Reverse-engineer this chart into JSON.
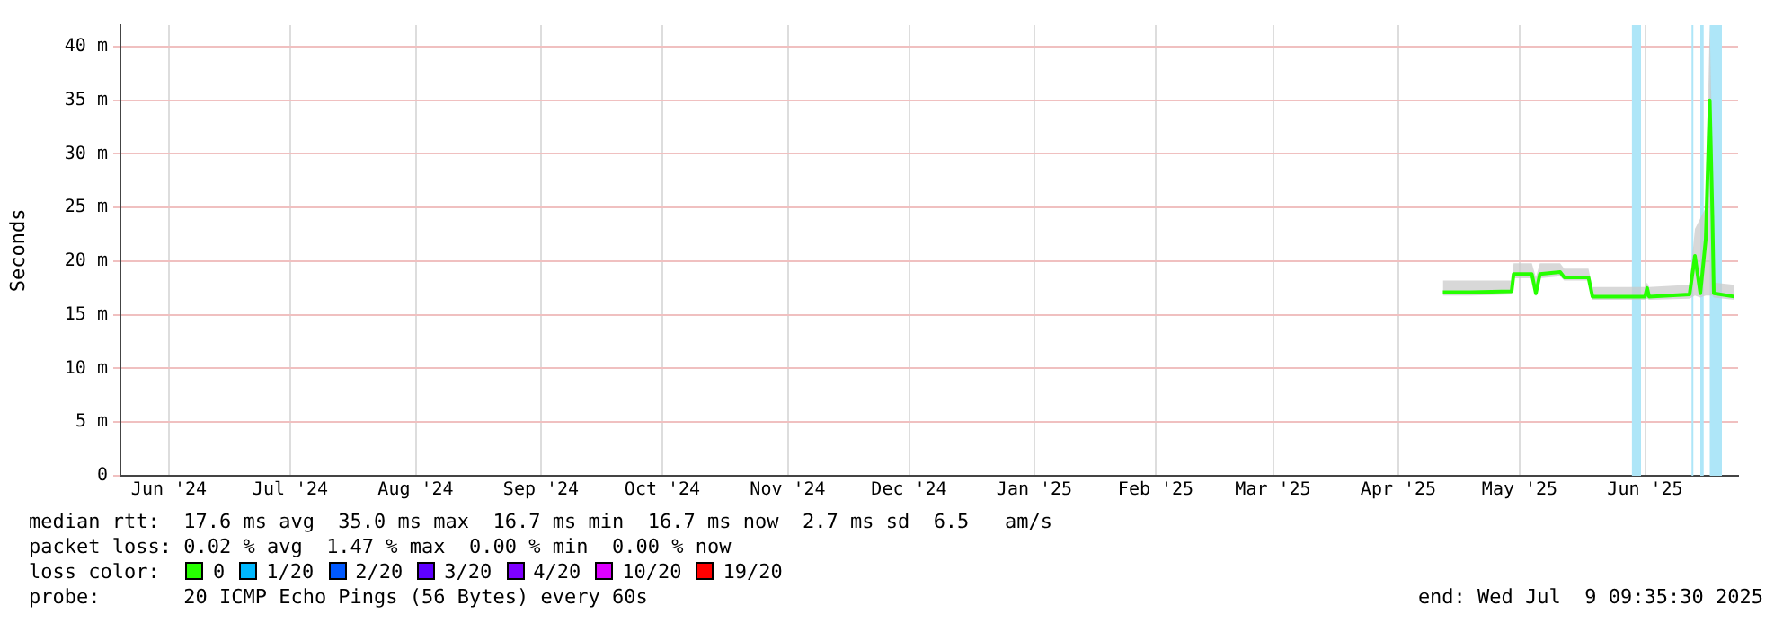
{
  "chart_data": {
    "type": "line",
    "ylabel": "Seconds",
    "legend_title": "loss color:",
    "legend": "bottom",
    "grid": true,
    "marker": "none",
    "line_style": "solid",
    "xlim": [
      "2024-06-04",
      "2025-07-09"
    ],
    "xticks": [
      {
        "value": "2024-06-16",
        "label": "Jun '24"
      },
      {
        "value": "2024-07-16",
        "label": "Jul '24"
      },
      {
        "value": "2024-08-16",
        "label": "Aug '24"
      },
      {
        "value": "2024-09-16",
        "label": "Sep '24"
      },
      {
        "value": "2024-10-16",
        "label": "Oct '24"
      },
      {
        "value": "2024-11-16",
        "label": "Nov '24"
      },
      {
        "value": "2024-12-16",
        "label": "Dec '24"
      },
      {
        "value": "2025-01-16",
        "label": "Jan '25"
      },
      {
        "value": "2025-02-15",
        "label": "Feb '25"
      },
      {
        "value": "2025-03-16",
        "label": "Mar '25"
      },
      {
        "value": "2025-04-16",
        "label": "Apr '25"
      },
      {
        "value": "2025-05-16",
        "label": "May '25"
      },
      {
        "value": "2025-06-16",
        "label": "Jun '25"
      }
    ],
    "ylim": [
      0,
      42
    ],
    "yticks": [
      0,
      {
        "value": 5,
        "label": "5 m"
      },
      {
        "value": 10,
        "label": "10 m"
      },
      {
        "value": 15,
        "label": "15 m"
      },
      {
        "value": 20,
        "label": "20 m"
      },
      {
        "value": 25,
        "label": "25 m"
      },
      {
        "value": 30,
        "label": "30 m"
      },
      {
        "value": 35,
        "label": "35 m"
      },
      {
        "value": 40,
        "label": "40 m"
      }
    ],
    "series": [
      {
        "name": "0",
        "color": "#26ff00",
        "x": [
          "2025-04-27",
          "2025-05-04",
          "2025-05-14",
          "2025-05-14T12:00",
          "2025-05-19",
          "2025-05-20",
          "2025-05-21",
          "2025-05-26",
          "2025-05-27",
          "2025-06-02",
          "2025-06-03",
          "2025-06-16",
          "2025-06-16T12:00",
          "2025-06-17",
          "2025-06-27",
          "2025-06-28T08:00",
          "2025-06-29T16:00",
          "2025-07-01",
          "2025-07-02",
          "2025-07-02T16:00",
          "2025-07-03",
          "2025-07-08"
        ],
        "values": [
          17.1,
          17.1,
          17.2,
          18.8,
          18.8,
          17.0,
          18.8,
          19.0,
          18.5,
          18.5,
          16.7,
          16.7,
          17.5,
          16.7,
          16.9,
          20.5,
          17,
          22,
          35,
          24,
          17,
          16.7
        ],
        "lower": [
          16.8,
          16.8,
          16.9,
          18.4,
          18.4,
          16.7,
          18.4,
          18.6,
          18.2,
          18.2,
          16.4,
          16.4,
          16.5,
          16.4,
          16.5,
          16.8,
          16.6,
          16.8,
          16.8,
          16.8,
          16.6,
          16.4
        ],
        "upper": [
          18.2,
          18.2,
          18.2,
          19.8,
          19.8,
          18.5,
          19.8,
          19.8,
          19.3,
          19.3,
          17.6,
          17.6,
          18,
          17.6,
          17.8,
          23,
          24,
          25,
          42,
          30,
          18,
          17.8
        ]
      },
      {
        "name": "1/20",
        "color": "#00b8ff"
      },
      {
        "name": "2/20",
        "color": "#0059ff"
      },
      {
        "name": "3/20",
        "color": "#5e00ff"
      },
      {
        "name": "4/20",
        "color": "#7e00ff"
      },
      {
        "name": "10/20",
        "color": "#dd00ff"
      },
      {
        "name": "19/20",
        "color": "#ff0000"
      }
    ],
    "bands": [
      {
        "axis": "x",
        "from": "2025-06-12T18:00",
        "to": "2025-06-15",
        "color": "#aee6f8"
      },
      {
        "axis": "x",
        "from": "2025-06-27T12:00",
        "to": "2025-06-27T22:00",
        "color": "#aee6f8"
      },
      {
        "axis": "x",
        "from": "2025-06-29T16:00",
        "to": "2025-06-30T12:00",
        "color": "#aee6f8"
      },
      {
        "axis": "x",
        "from": "2025-07-02",
        "to": "2025-07-05",
        "color": "#aee6f8"
      }
    ],
    "annotations": [
      "median rtt:  17.6 ms avg  35.0 ms max  16.7 ms min  16.7 ms now  2.7 ms sd  6.5   am/s",
      "packet loss: 0.02 % avg  1.47 % max  0.00 % min  0.00 % now",
      "probe:       20 ICMP Echo Pings (56 Bytes) every 60s",
      "end: Wed Jul  9 09:35:30 2025"
    ]
  }
}
